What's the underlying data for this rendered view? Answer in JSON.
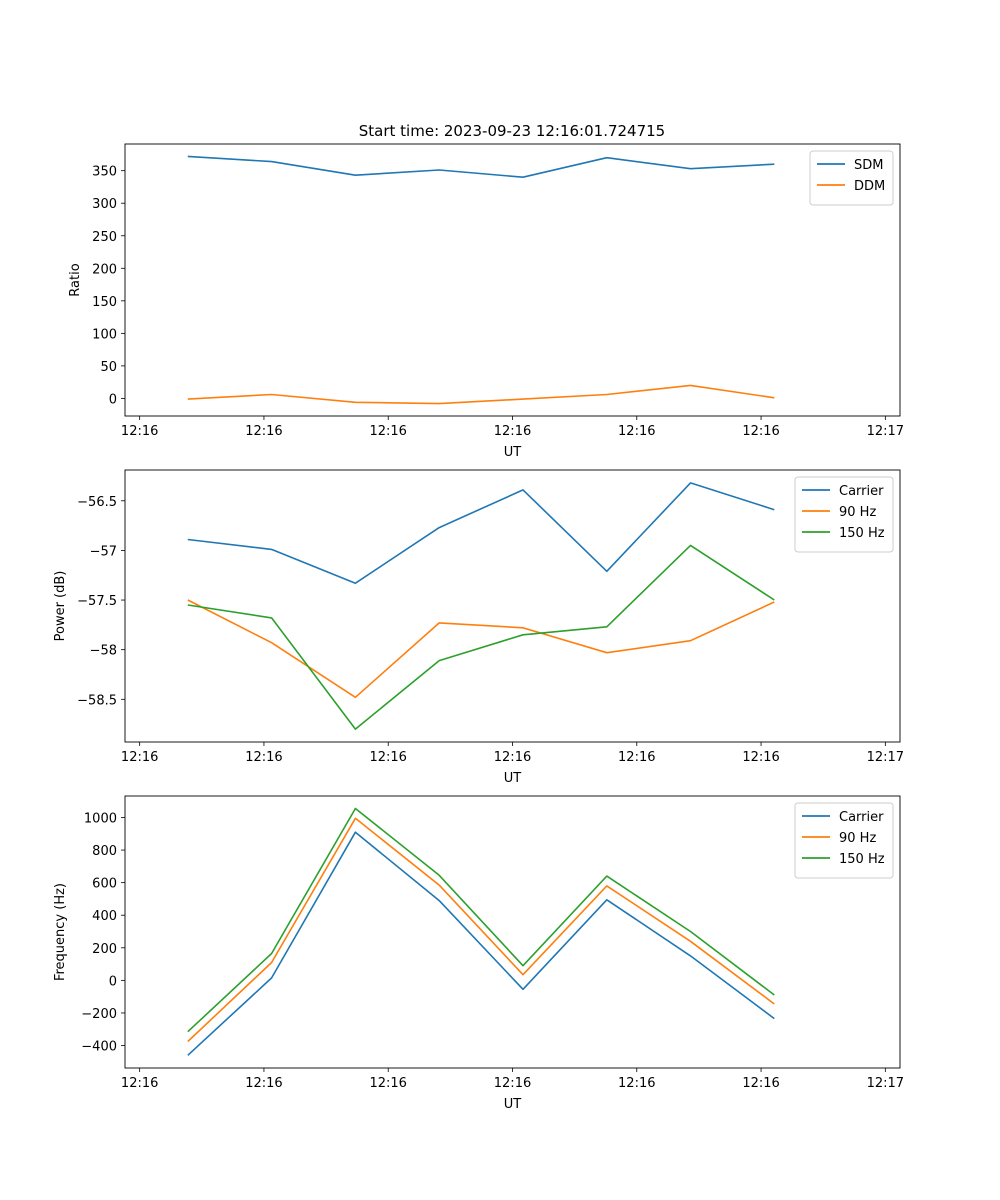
{
  "figure": {
    "title": "Start time: 2023-09-23 12:16:01.724715"
  },
  "chart_data": [
    {
      "type": "line",
      "xlabel": "UT",
      "ylabel": "Ratio",
      "x_tick_labels": [
        "12:16",
        "12:16",
        "12:16",
        "12:16",
        "12:16",
        "12:16",
        "12:17"
      ],
      "xlim": [
        0,
        37
      ],
      "x": [
        3,
        7,
        11,
        15,
        19,
        23,
        27,
        31
      ],
      "ylim": [
        -27,
        391
      ],
      "yticks": [
        0,
        50,
        100,
        150,
        200,
        250,
        300,
        350
      ],
      "legend_position": "top-right",
      "series": [
        {
          "name": "SDM",
          "color": "#1f77b4",
          "values": [
            372,
            364,
            343,
            351,
            340,
            370,
            353,
            360
          ]
        },
        {
          "name": "DDM",
          "color": "#ff7f0e",
          "values": [
            -1,
            6,
            -6,
            -8,
            -1,
            6,
            20,
            1
          ]
        }
      ]
    },
    {
      "type": "line",
      "xlabel": "UT",
      "ylabel": "Power (dB)",
      "x_tick_labels": [
        "12:16",
        "12:16",
        "12:16",
        "12:16",
        "12:16",
        "12:16",
        "12:17"
      ],
      "xlim": [
        0,
        37
      ],
      "x": [
        3,
        7,
        11,
        15,
        19,
        23,
        27,
        31
      ],
      "ylim": [
        -58.93,
        -56.19
      ],
      "yticks": [
        -58.5,
        -58.0,
        -57.5,
        -57.0,
        -56.5
      ],
      "legend_position": "top-right",
      "series": [
        {
          "name": "Carrier",
          "color": "#1f77b4",
          "values": [
            -56.89,
            -56.99,
            -57.33,
            -56.77,
            -56.39,
            -57.21,
            -56.32,
            -56.59
          ]
        },
        {
          "name": "90 Hz",
          "color": "#ff7f0e",
          "values": [
            -57.5,
            -57.93,
            -58.48,
            -57.73,
            -57.78,
            -58.03,
            -57.91,
            -57.52
          ]
        },
        {
          "name": "150 Hz",
          "color": "#2ca02c",
          "values": [
            -57.55,
            -57.68,
            -58.8,
            -58.11,
            -57.85,
            -57.77,
            -56.95,
            -57.5
          ]
        }
      ]
    },
    {
      "type": "line",
      "xlabel": "UT",
      "ylabel": "Frequency (Hz)",
      "x_tick_labels": [
        "12:16",
        "12:16",
        "12:16",
        "12:16",
        "12:16",
        "12:16",
        "12:17"
      ],
      "xlim": [
        0,
        37
      ],
      "x": [
        3,
        7,
        11,
        15,
        19,
        23,
        27,
        31
      ],
      "ylim": [
        -538,
        1132
      ],
      "yticks": [
        -400,
        -200,
        0,
        200,
        400,
        600,
        800,
        1000
      ],
      "legend_position": "top-right",
      "series": [
        {
          "name": "Carrier",
          "color": "#1f77b4",
          "values": [
            -460,
            15,
            910,
            490,
            -55,
            495,
            150,
            -235
          ]
        },
        {
          "name": "90 Hz",
          "color": "#ff7f0e",
          "values": [
            -375,
            110,
            995,
            585,
            35,
            580,
            240,
            -145
          ]
        },
        {
          "name": "150 Hz",
          "color": "#2ca02c",
          "values": [
            -315,
            165,
            1055,
            645,
            90,
            640,
            300,
            -90
          ]
        }
      ]
    }
  ]
}
